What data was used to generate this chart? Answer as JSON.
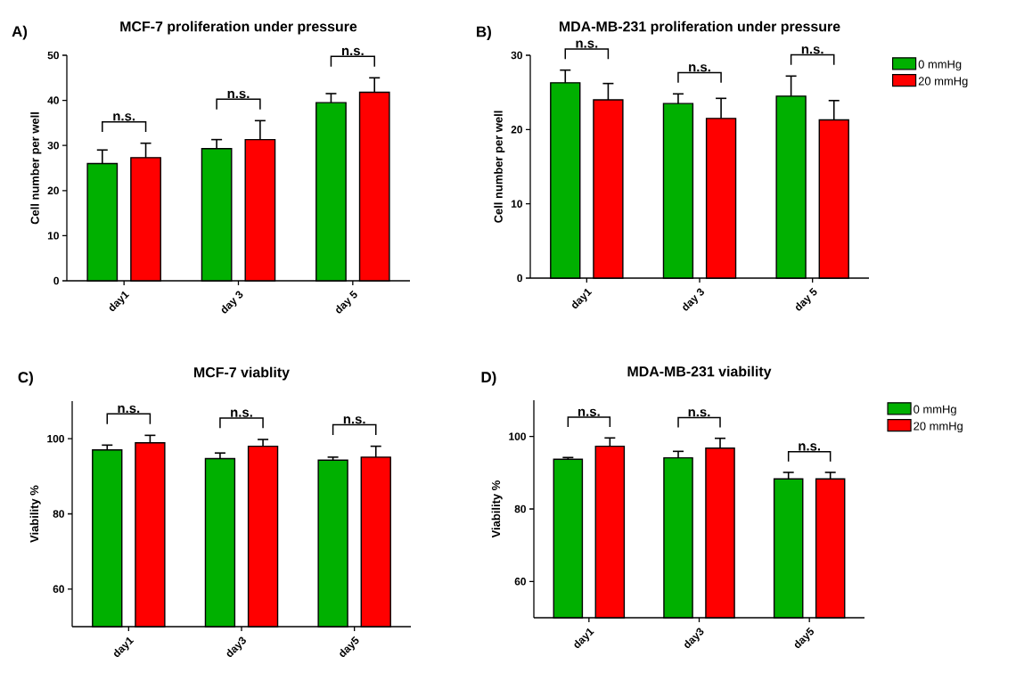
{
  "chart_data": [
    {
      "type": "bar",
      "title": "MCF-7 proliferation under pressure",
      "ylabel": "Cell number per well",
      "categories": [
        "day1",
        "day 3",
        "day 5"
      ],
      "ylim": [
        0,
        50
      ],
      "yticks": [
        0,
        10,
        20,
        30,
        40,
        50
      ],
      "legend": false,
      "series": [
        {
          "color": "#00b000",
          "values": [
            26,
            29.3,
            39.5
          ],
          "errors": [
            3,
            2,
            2
          ]
        },
        {
          "color": "#ff0000",
          "values": [
            27.3,
            31.3,
            41.8
          ],
          "errors": [
            3.2,
            4.2,
            3.2
          ]
        }
      ],
      "annotations": [
        "A)",
        "n.s.",
        "n.s.",
        "n.s."
      ]
    },
    {
      "type": "bar",
      "title": "MDA-MB-231 proliferation under pressure",
      "ylabel": "Cell number per well",
      "categories": [
        "day1",
        "day 3",
        "day 5"
      ],
      "ylim": [
        0,
        30
      ],
      "yticks": [
        0,
        10,
        20,
        30
      ],
      "legend": "top right",
      "series": [
        {
          "name": "0 mmHg",
          "color": "#00b000",
          "values": [
            26.3,
            23.5,
            24.5
          ],
          "errors": [
            1.7,
            1.3,
            2.7
          ]
        },
        {
          "name": "20 mmHg",
          "color": "#ff0000",
          "values": [
            24,
            21.5,
            21.3
          ],
          "errors": [
            2.2,
            2.7,
            2.6
          ]
        }
      ],
      "annotations": [
        "B)",
        "n.s.",
        "n.s.",
        "n.s."
      ]
    },
    {
      "type": "bar",
      "title": "MCF-7 viablity",
      "ylabel": "Viability %",
      "categories": [
        "day1",
        "day3",
        "day5"
      ],
      "ylim": [
        50,
        110
      ],
      "yticks": [
        60,
        80,
        100
      ],
      "legend": false,
      "series": [
        {
          "color": "#00b000",
          "values": [
            97,
            94.7,
            94.3
          ],
          "errors": [
            1.3,
            1.5,
            0.8
          ]
        },
        {
          "color": "#ff0000",
          "values": [
            98.9,
            98,
            95.1
          ],
          "errors": [
            2,
            1.8,
            2.9
          ]
        }
      ],
      "annotations": [
        "C)",
        "n.s.",
        "n.s.",
        "n.s."
      ]
    },
    {
      "type": "bar",
      "title": "MDA-MB-231 viability",
      "ylabel": "Viability %",
      "categories": [
        "day1",
        "day3",
        "day5"
      ],
      "ylim": [
        50,
        110
      ],
      "yticks": [
        60,
        80,
        100
      ],
      "legend": "top right",
      "series": [
        {
          "name": "0 mmHg",
          "color": "#00b000",
          "values": [
            93.7,
            94.1,
            88.3
          ],
          "errors": [
            0.5,
            1.8,
            1.8
          ]
        },
        {
          "name": "20 mmHg",
          "color": "#ff0000",
          "values": [
            97.3,
            96.8,
            88.3
          ],
          "errors": [
            2.3,
            2.7,
            1.8
          ]
        }
      ],
      "annotations": [
        "D)",
        "n.s.",
        "n.s.",
        "n.s."
      ]
    }
  ]
}
